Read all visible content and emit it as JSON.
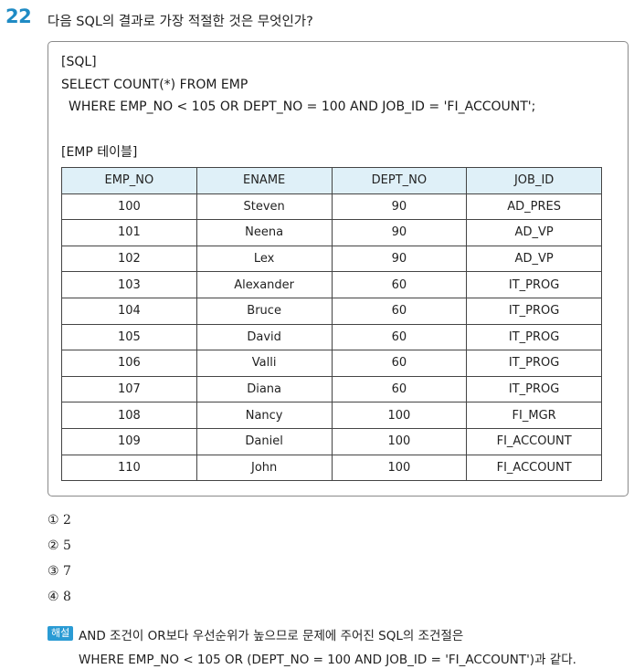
{
  "question": {
    "number": "22",
    "text": "다음 SQL의 결과로 가장 적절한 것은 무엇인가?"
  },
  "box": {
    "sql_heading": "[SQL]",
    "sql_line1": "SELECT COUNT(*) FROM EMP",
    "sql_line2": "WHERE EMP_NO < 105 OR DEPT_NO = 100 AND JOB_ID = 'FI_ACCOUNT';",
    "table_heading": "[EMP 테이블]"
  },
  "table": {
    "headers": [
      "EMP_NO",
      "ENAME",
      "DEPT_NO",
      "JOB_ID"
    ],
    "rows": [
      [
        "100",
        "Steven",
        "90",
        "AD_PRES"
      ],
      [
        "101",
        "Neena",
        "90",
        "AD_VP"
      ],
      [
        "102",
        "Lex",
        "90",
        "AD_VP"
      ],
      [
        "103",
        "Alexander",
        "60",
        "IT_PROG"
      ],
      [
        "104",
        "Bruce",
        "60",
        "IT_PROG"
      ],
      [
        "105",
        "David",
        "60",
        "IT_PROG"
      ],
      [
        "106",
        "Valli",
        "60",
        "IT_PROG"
      ],
      [
        "107",
        "Diana",
        "60",
        "IT_PROG"
      ],
      [
        "108",
        "Nancy",
        "100",
        "FI_MGR"
      ],
      [
        "109",
        "Daniel",
        "100",
        "FI_ACCOUNT"
      ],
      [
        "110",
        "John",
        "100",
        "FI_ACCOUNT"
      ]
    ]
  },
  "options": [
    "① 2",
    "② 5",
    "③ 7",
    "④ 8"
  ],
  "explanation": {
    "badge": "해설",
    "line1": "AND 조건이 OR보다 우선순위가 높으므로 문제에 주어진 SQL의 조건절은",
    "line2": "WHERE EMP_NO < 105 OR (DEPT_NO = 100 AND JOB_ID = 'FI_ACCOUNT')과 같다."
  }
}
